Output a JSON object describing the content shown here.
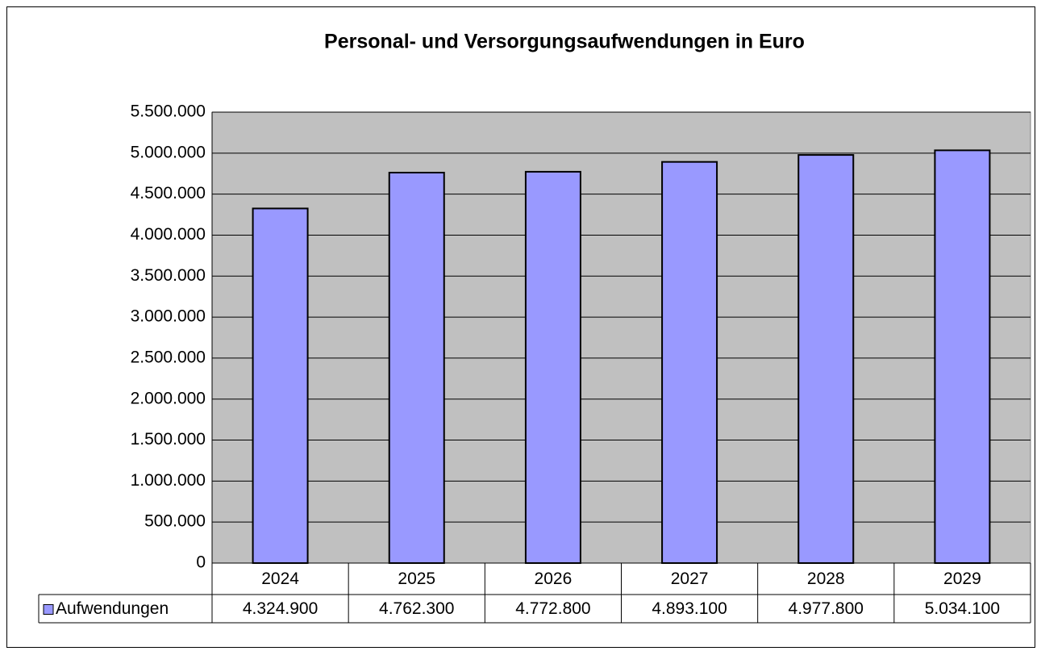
{
  "chart_data": {
    "type": "bar",
    "title": "Personal- und Versorgungsaufwendungen in Euro",
    "categories": [
      "2024",
      "2025",
      "2026",
      "2027",
      "2028",
      "2029"
    ],
    "series": [
      {
        "name": "Aufwendungen",
        "color": "#9999ff",
        "values": [
          4324900,
          4762300,
          4772800,
          4893100,
          4977800,
          5034100
        ],
        "value_labels": [
          "4.324.900",
          "4.762.300",
          "4.772.800",
          "4.893.100",
          "4.977.800",
          "5.034.100"
        ]
      }
    ],
    "ylim": [
      0,
      5500000
    ],
    "yticks": [
      0,
      {
        "value": 500000,
        "label": "500.000"
      },
      {
        "value": 1000000,
        "label": "1.000.000"
      },
      {
        "value": 1500000,
        "label": "1.500.000"
      },
      {
        "value": 2000000,
        "label": "2.000.000"
      },
      {
        "value": 2500000,
        "label": "2.500.000"
      },
      {
        "value": 3000000,
        "label": "3.000.000"
      },
      {
        "value": 3500000,
        "label": "3.500.000"
      },
      {
        "value": 4000000,
        "label": "4.000.000"
      },
      {
        "value": 4500000,
        "label": "4.500.000"
      },
      {
        "value": 5000000,
        "label": "5.000.000"
      },
      {
        "value": 5500000,
        "label": "5.500.000"
      }
    ],
    "grid": true,
    "plot_background": "#c0c0c0"
  }
}
